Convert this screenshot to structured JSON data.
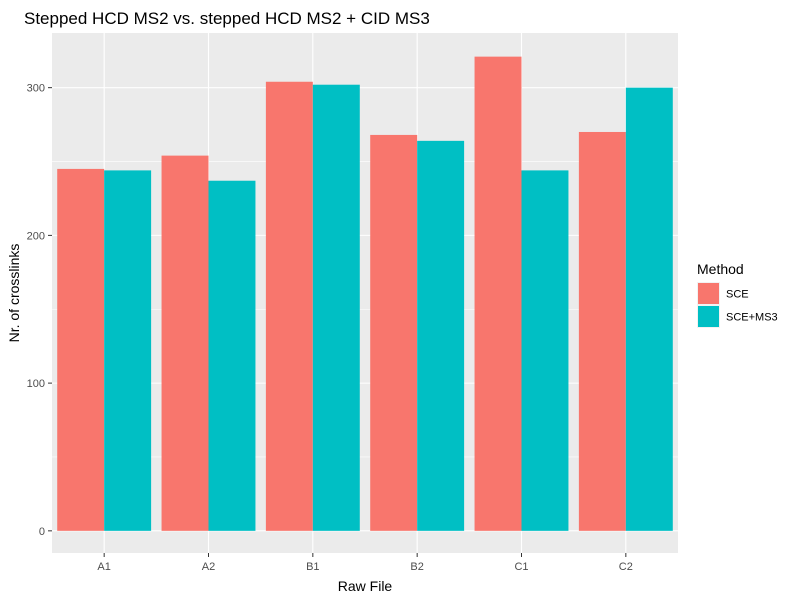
{
  "chart_data": {
    "type": "bar",
    "title": "Stepped HCD MS2 vs. stepped HCD MS2 + CID MS3",
    "xlabel": "Raw File",
    "ylabel": "Nr. of crosslinks",
    "categories": [
      "A1",
      "A2",
      "B1",
      "B2",
      "C1",
      "C2"
    ],
    "series": [
      {
        "name": "SCE",
        "color": "#F8766D",
        "values": [
          245,
          254,
          304,
          268,
          321,
          270
        ]
      },
      {
        "name": "SCE+MS3",
        "color": "#00BFC4",
        "values": [
          244,
          237,
          302,
          264,
          244,
          300
        ]
      }
    ],
    "yticks": [
      0,
      100,
      200,
      300
    ],
    "ylim": [
      -15,
      337
    ],
    "grid": true,
    "legend": {
      "title": "Method",
      "position": "right"
    },
    "panel_color": "#EBEBEB"
  }
}
